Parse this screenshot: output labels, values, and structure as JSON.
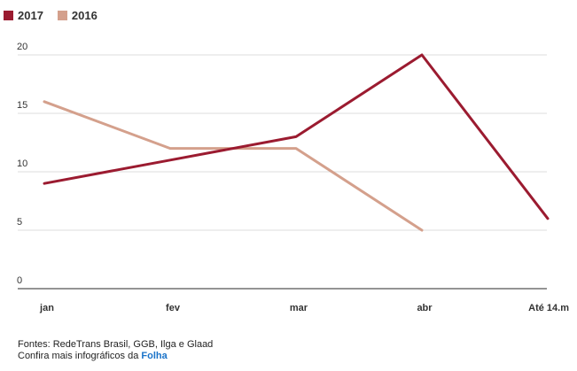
{
  "chart_data": {
    "type": "line",
    "title": "",
    "xlabel": "",
    "ylabel": "",
    "categories": [
      "jan",
      "fev",
      "mar",
      "abr",
      "Até 14.m"
    ],
    "yticks": [
      0,
      5,
      10,
      15,
      20
    ],
    "ylim": [
      0,
      20
    ],
    "grid": true,
    "legend_position": "top-left",
    "series": [
      {
        "name": "2017",
        "color": "#9b1b30",
        "values": [
          9,
          11,
          13,
          20,
          6
        ]
      },
      {
        "name": "2016",
        "color": "#d4a08c",
        "values": [
          16,
          12,
          12,
          5,
          null
        ]
      }
    ]
  },
  "footer": {
    "sources": "Fontes: RedeTrans Brasil, GGB, Ilga e Glaad",
    "more_prefix": "Confira mais infográficos da ",
    "more_link": "Folha"
  }
}
